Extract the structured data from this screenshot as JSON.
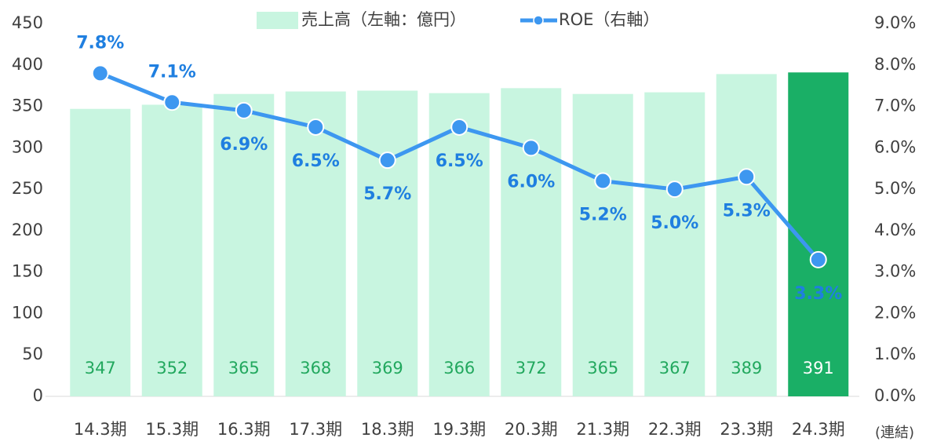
{
  "chart_data": {
    "type": "bar",
    "categories": [
      "14.3期",
      "15.3期",
      "16.3期",
      "17.3期",
      "18.3期",
      "19.3期",
      "20.3期",
      "21.3期",
      "22.3期",
      "23.3期",
      "24.3期"
    ],
    "series": [
      {
        "name": "売上高（左軸：億円）",
        "type": "bar",
        "color": "#c8f5e0",
        "colors": [
          "#c8f5e0",
          "#c8f5e0",
          "#c8f5e0",
          "#c8f5e0",
          "#c8f5e0",
          "#c8f5e0",
          "#c8f5e0",
          "#c8f5e0",
          "#c8f5e0",
          "#c8f5e0",
          "#1aaf66"
        ],
        "values": [
          347,
          352,
          365,
          368,
          369,
          366,
          372,
          365,
          367,
          389,
          391
        ]
      },
      {
        "name": "ROE（右軸）",
        "type": "line",
        "axis": "y2",
        "color": "#3d97f0",
        "values": [
          7.8,
          7.1,
          6.9,
          6.5,
          5.7,
          6.5,
          6.0,
          5.2,
          5.0,
          5.3,
          3.3
        ],
        "value_labels": [
          "7.8%",
          "7.1%",
          "6.9%",
          "6.5%",
          "5.7%",
          "6.5%",
          "6.0%",
          "5.2%",
          "5.0%",
          "5.3%",
          "3.3%"
        ]
      }
    ],
    "ylim": [
      0,
      450
    ],
    "yticks": [
      0,
      50,
      100,
      150,
      200,
      250,
      300,
      350,
      400,
      450
    ],
    "y2lim": [
      0,
      9
    ],
    "y2ticks": [
      {
        "value": 0,
        "label": "0.0%"
      },
      {
        "value": 1,
        "label": "1.0%"
      },
      {
        "value": 2,
        "label": "2.0%"
      },
      {
        "value": 3,
        "label": "3.0%"
      },
      {
        "value": 4,
        "label": "4.0%"
      },
      {
        "value": 5,
        "label": "5.0%"
      },
      {
        "value": 6,
        "label": "6.0%"
      },
      {
        "value": 7,
        "label": "7.0%"
      },
      {
        "value": 8,
        "label": "8.0%"
      },
      {
        "value": 9,
        "label": "9.0%"
      }
    ],
    "annotation": "(連結)",
    "legend": "top",
    "grid": false
  }
}
